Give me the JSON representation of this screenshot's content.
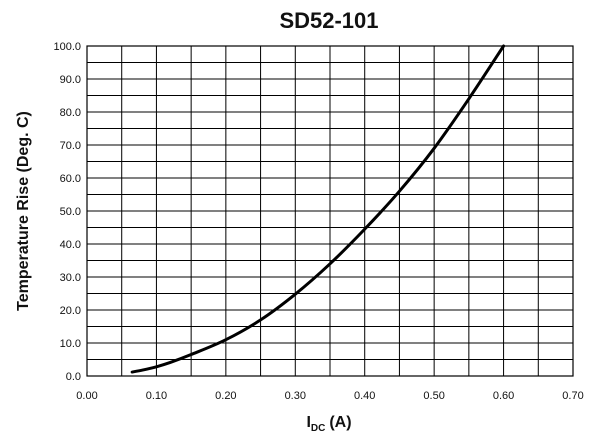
{
  "chart_data": {
    "type": "line",
    "title": "SD52-101",
    "xlabel_main": "I",
    "xlabel_sub": "DC",
    "xlabel_unit": "(A)",
    "ylabel": "Temperature Rise (Deg. C)",
    "xlim": [
      0,
      0.7
    ],
    "ylim": [
      0,
      100
    ],
    "x_ticks": [
      0.0,
      0.1,
      0.2,
      0.3,
      0.4,
      0.5,
      0.6,
      0.7
    ],
    "x_tick_labels": [
      "0.00",
      "0.10",
      "0.20",
      "0.30",
      "0.40",
      "0.50",
      "0.60",
      "0.70"
    ],
    "y_ticks": [
      0,
      10,
      20,
      30,
      40,
      50,
      60,
      70,
      80,
      90,
      100
    ],
    "y_tick_labels": [
      "0.0",
      "10.0",
      "20.0",
      "30.0",
      "40.0",
      "50.0",
      "60.0",
      "70.0",
      "80.0",
      "90.0",
      "100.0"
    ],
    "x_minor_step": 0.05,
    "y_minor_step": 5,
    "grid": true,
    "series": [
      {
        "x": [
          0.065,
          0.08,
          0.1,
          0.12,
          0.15,
          0.2,
          0.25,
          0.3,
          0.35,
          0.4,
          0.45,
          0.5,
          0.55,
          0.6
        ],
        "y": [
          1.2,
          1.8,
          2.8,
          4.1,
          6.5,
          11.0,
          17.0,
          24.8,
          34.0,
          44.5,
          56.0,
          69.0,
          84.0,
          100.0
        ]
      }
    ]
  }
}
